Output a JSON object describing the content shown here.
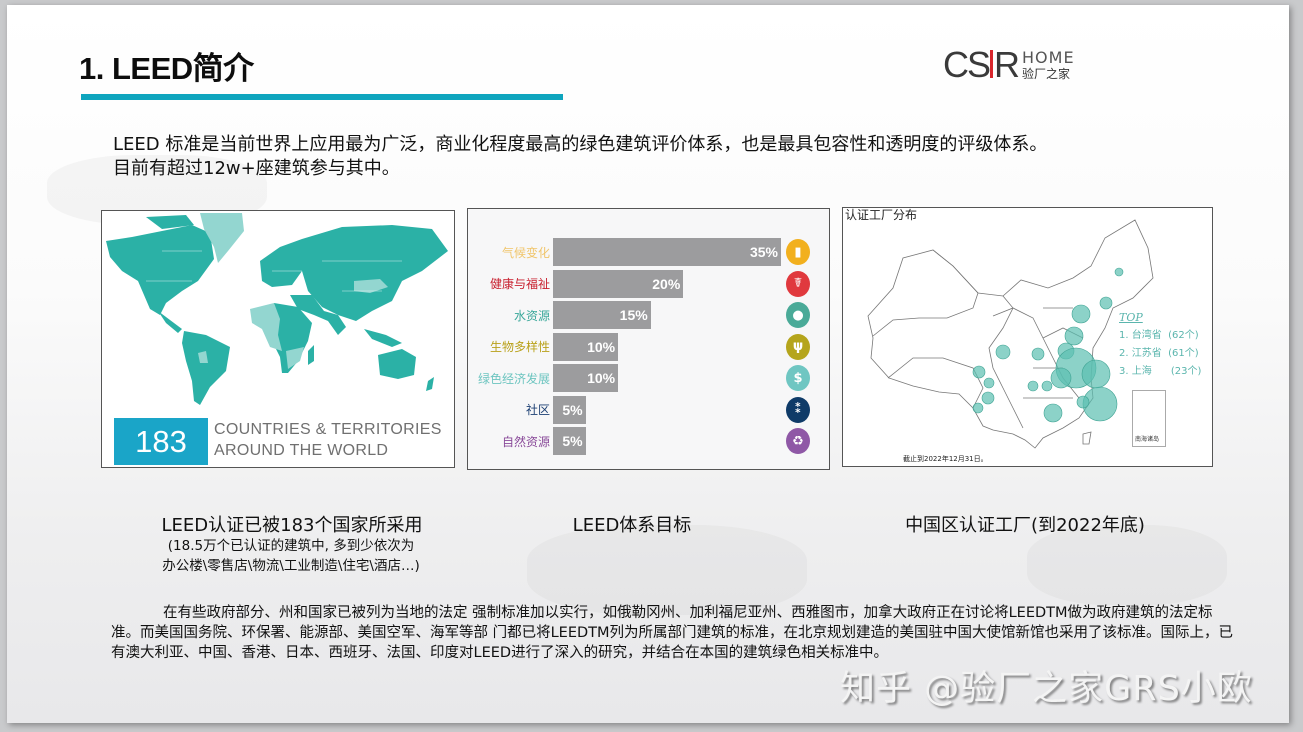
{
  "slide": {
    "title": "1. LEED简介",
    "accent_color": "#0ea5be"
  },
  "logo": {
    "mark_left": "CS",
    "mark_right": "R",
    "home": "HOME",
    "cn": "验厂之家"
  },
  "intro": {
    "line1": "LEED 标准是当前世界上应用最为广泛，商业化程度最高的绿色建筑评价体系，也是最具包容性和透明度的评级体系。",
    "line2": "目前有超过12w+座建筑参与其中。"
  },
  "world_map": {
    "count": "183",
    "text_line1": "COUNTRIES & TERRITORIES",
    "text_line2": "AROUND THE WORLD",
    "fill_color": "#2bb1a6",
    "light_fill_color": "#93d6d0"
  },
  "chart_data": {
    "type": "bar",
    "orientation": "horizontal",
    "title": "LEED体系目标",
    "categories": [
      "气候变化",
      "健康与福祉",
      "水资源",
      "生物多样性",
      "绿色经济发展",
      "社区",
      "自然资源"
    ],
    "values": [
      35,
      20,
      15,
      10,
      10,
      5,
      5
    ],
    "value_labels": [
      "35%",
      "20%",
      "15%",
      "10%",
      "10%",
      "5%",
      "5%"
    ],
    "label_colors": [
      "#f0c56a",
      "#c8202f",
      "#3aa89a",
      "#b9a11a",
      "#6dc5c0",
      "#1c3f73",
      "#8a4b9a"
    ],
    "icon_colors": [
      "#f2b01e",
      "#e0393e",
      "#4aaa98",
      "#b5a51c",
      "#6fc6c2",
      "#0f3b68",
      "#8f58a6"
    ],
    "icons": [
      "chart-icon",
      "caduceus-icon",
      "water-drop-icon",
      "hands-plant-icon",
      "dollar-icon",
      "people-icon",
      "recycle-icon"
    ],
    "bar_color": "#9c9c9e",
    "xlim": [
      0,
      35
    ]
  },
  "china_map": {
    "title": "认证工厂分布",
    "top_heading": "TOP",
    "top": [
      {
        "rank": "1.",
        "name": "台湾省",
        "count": "(62个)"
      },
      {
        "rank": "2.",
        "name": "江苏省",
        "count": "(61个)"
      },
      {
        "rank": "3.",
        "name": "上海",
        "count": "(23个)"
      }
    ],
    "footnote": "截止到2022年12月31日。",
    "inset_label": "南海诸岛",
    "province_labels": [
      "新疆",
      "西藏",
      "青海",
      "甘肃",
      "宁夏",
      "内蒙古",
      "黑龙江",
      "吉林",
      "辽宁",
      "山西",
      "山东",
      "陕西",
      "河南",
      "四川",
      "重庆",
      "贵州",
      "云南",
      "广西",
      "广东",
      "海南",
      "湖北",
      "湖南",
      "江西",
      "福建",
      "香港",
      "澳门",
      "台湾"
    ],
    "bubble_color": "#5bbfb0"
  },
  "captions": {
    "map": "LEED认证已被183个国家所采用",
    "map_sub1": "(18.5万个已认证的建筑中, 多到少依次为",
    "map_sub2": "办公楼\\零售店\\物流\\工业制造\\住宅\\酒店…)",
    "chart": "LEED体系目标",
    "china": "中国区认证工厂(到2022年底)"
  },
  "body": {
    "paragraph": "在有些政府部分、州和国家已被列为当地的法定 强制标准加以实行，如俄勒冈州、加利福尼亚州、西雅图市，加拿大政府正在讨论将LEEDTM做为政府建筑的法定标准。而美国国务院、环保署、能源部、美国空军、海军等部 门都已将LEEDTM列为所属部门建筑的标准，在北京规划建造的美国驻中国大使馆新馆也采用了该标准。国际上，已有澳大利亚、中国、香港、日本、西班牙、法国、印度对LEED进行了深入的研究，并结合在本国的建筑绿色相关标准中。"
  },
  "watermark": "知乎 @验厂之家GRS小欧"
}
